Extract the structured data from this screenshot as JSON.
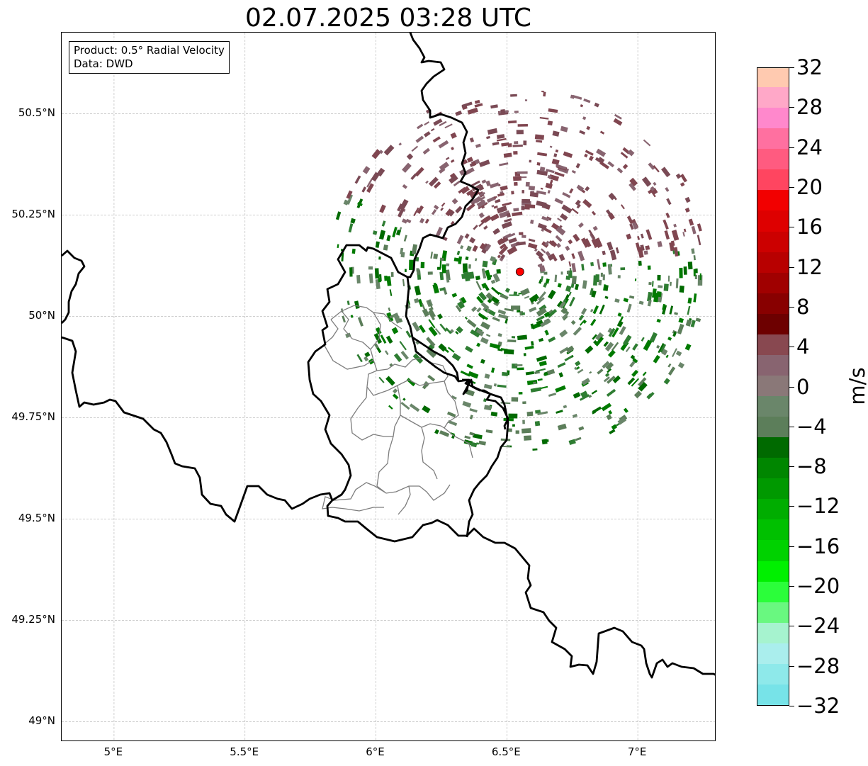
{
  "title": "02.07.2025 03:28 UTC",
  "info_box": {
    "product": "Product: 0.5° Radial Velocity",
    "data": "Data: DWD"
  },
  "map": {
    "lon_range": [
      4.8,
      7.3
    ],
    "lat_range": [
      48.95,
      50.7
    ],
    "lat_ticks": [
      {
        "value": 50.5,
        "label": "50.5°N"
      },
      {
        "value": 50.25,
        "label": "50.25°N"
      },
      {
        "value": 50.0,
        "label": "50°N"
      },
      {
        "value": 49.75,
        "label": "49.75°N"
      },
      {
        "value": 49.5,
        "label": "49.5°N"
      },
      {
        "value": 49.25,
        "label": "49.25°N"
      },
      {
        "value": 49.0,
        "label": "49°N"
      }
    ],
    "lon_ticks": [
      {
        "value": 5.0,
        "label": "5°E"
      },
      {
        "value": 5.5,
        "label": "5.5°E"
      },
      {
        "value": 6.0,
        "label": "6°E"
      },
      {
        "value": 6.5,
        "label": "6.5°E"
      },
      {
        "value": 7.0,
        "label": "7°E"
      }
    ],
    "radar_site": {
      "lon": 6.55,
      "lat": 50.11,
      "color": "#ff0000"
    },
    "gridlines": true
  },
  "colorbar": {
    "unit": "m/s",
    "min": -32,
    "max": 32,
    "tick_labels": [
      "32",
      "28",
      "24",
      "20",
      "16",
      "12",
      "8",
      "4",
      "0",
      "−4",
      "−8",
      "−12",
      "−16",
      "−20",
      "−24",
      "−28",
      "−32"
    ],
    "tick_values": [
      32,
      28,
      24,
      20,
      16,
      12,
      8,
      4,
      0,
      -4,
      -8,
      -12,
      -16,
      -20,
      -24,
      -28,
      -32
    ],
    "colors_bottom_to_top": [
      "#77e3e8",
      "#8ee9ea",
      "#aaeeed",
      "#a6f3cf",
      "#69f880",
      "#2bfe3a",
      "#00f000",
      "#00d200",
      "#00c000",
      "#00ad00",
      "#009900",
      "#008600",
      "#006a00",
      "#5c7e5a",
      "#6a866a",
      "#8a7878",
      "#886470",
      "#884850",
      "#6d0000",
      "#880000",
      "#a00000",
      "#b80000",
      "#cc0000",
      "#de0000",
      "#f20000",
      "#ff4560",
      "#ff5b80",
      "#ff70a0",
      "#ff88cc",
      "#ffa8c8",
      "#ffcab0"
    ]
  },
  "echo_colors": {
    "inbound": [
      "#5c7e5a",
      "#6a866a",
      "#2e7d32",
      "#006a00",
      "#007a00"
    ],
    "outbound": [
      "#7a4a55",
      "#886470",
      "#804650"
    ]
  }
}
